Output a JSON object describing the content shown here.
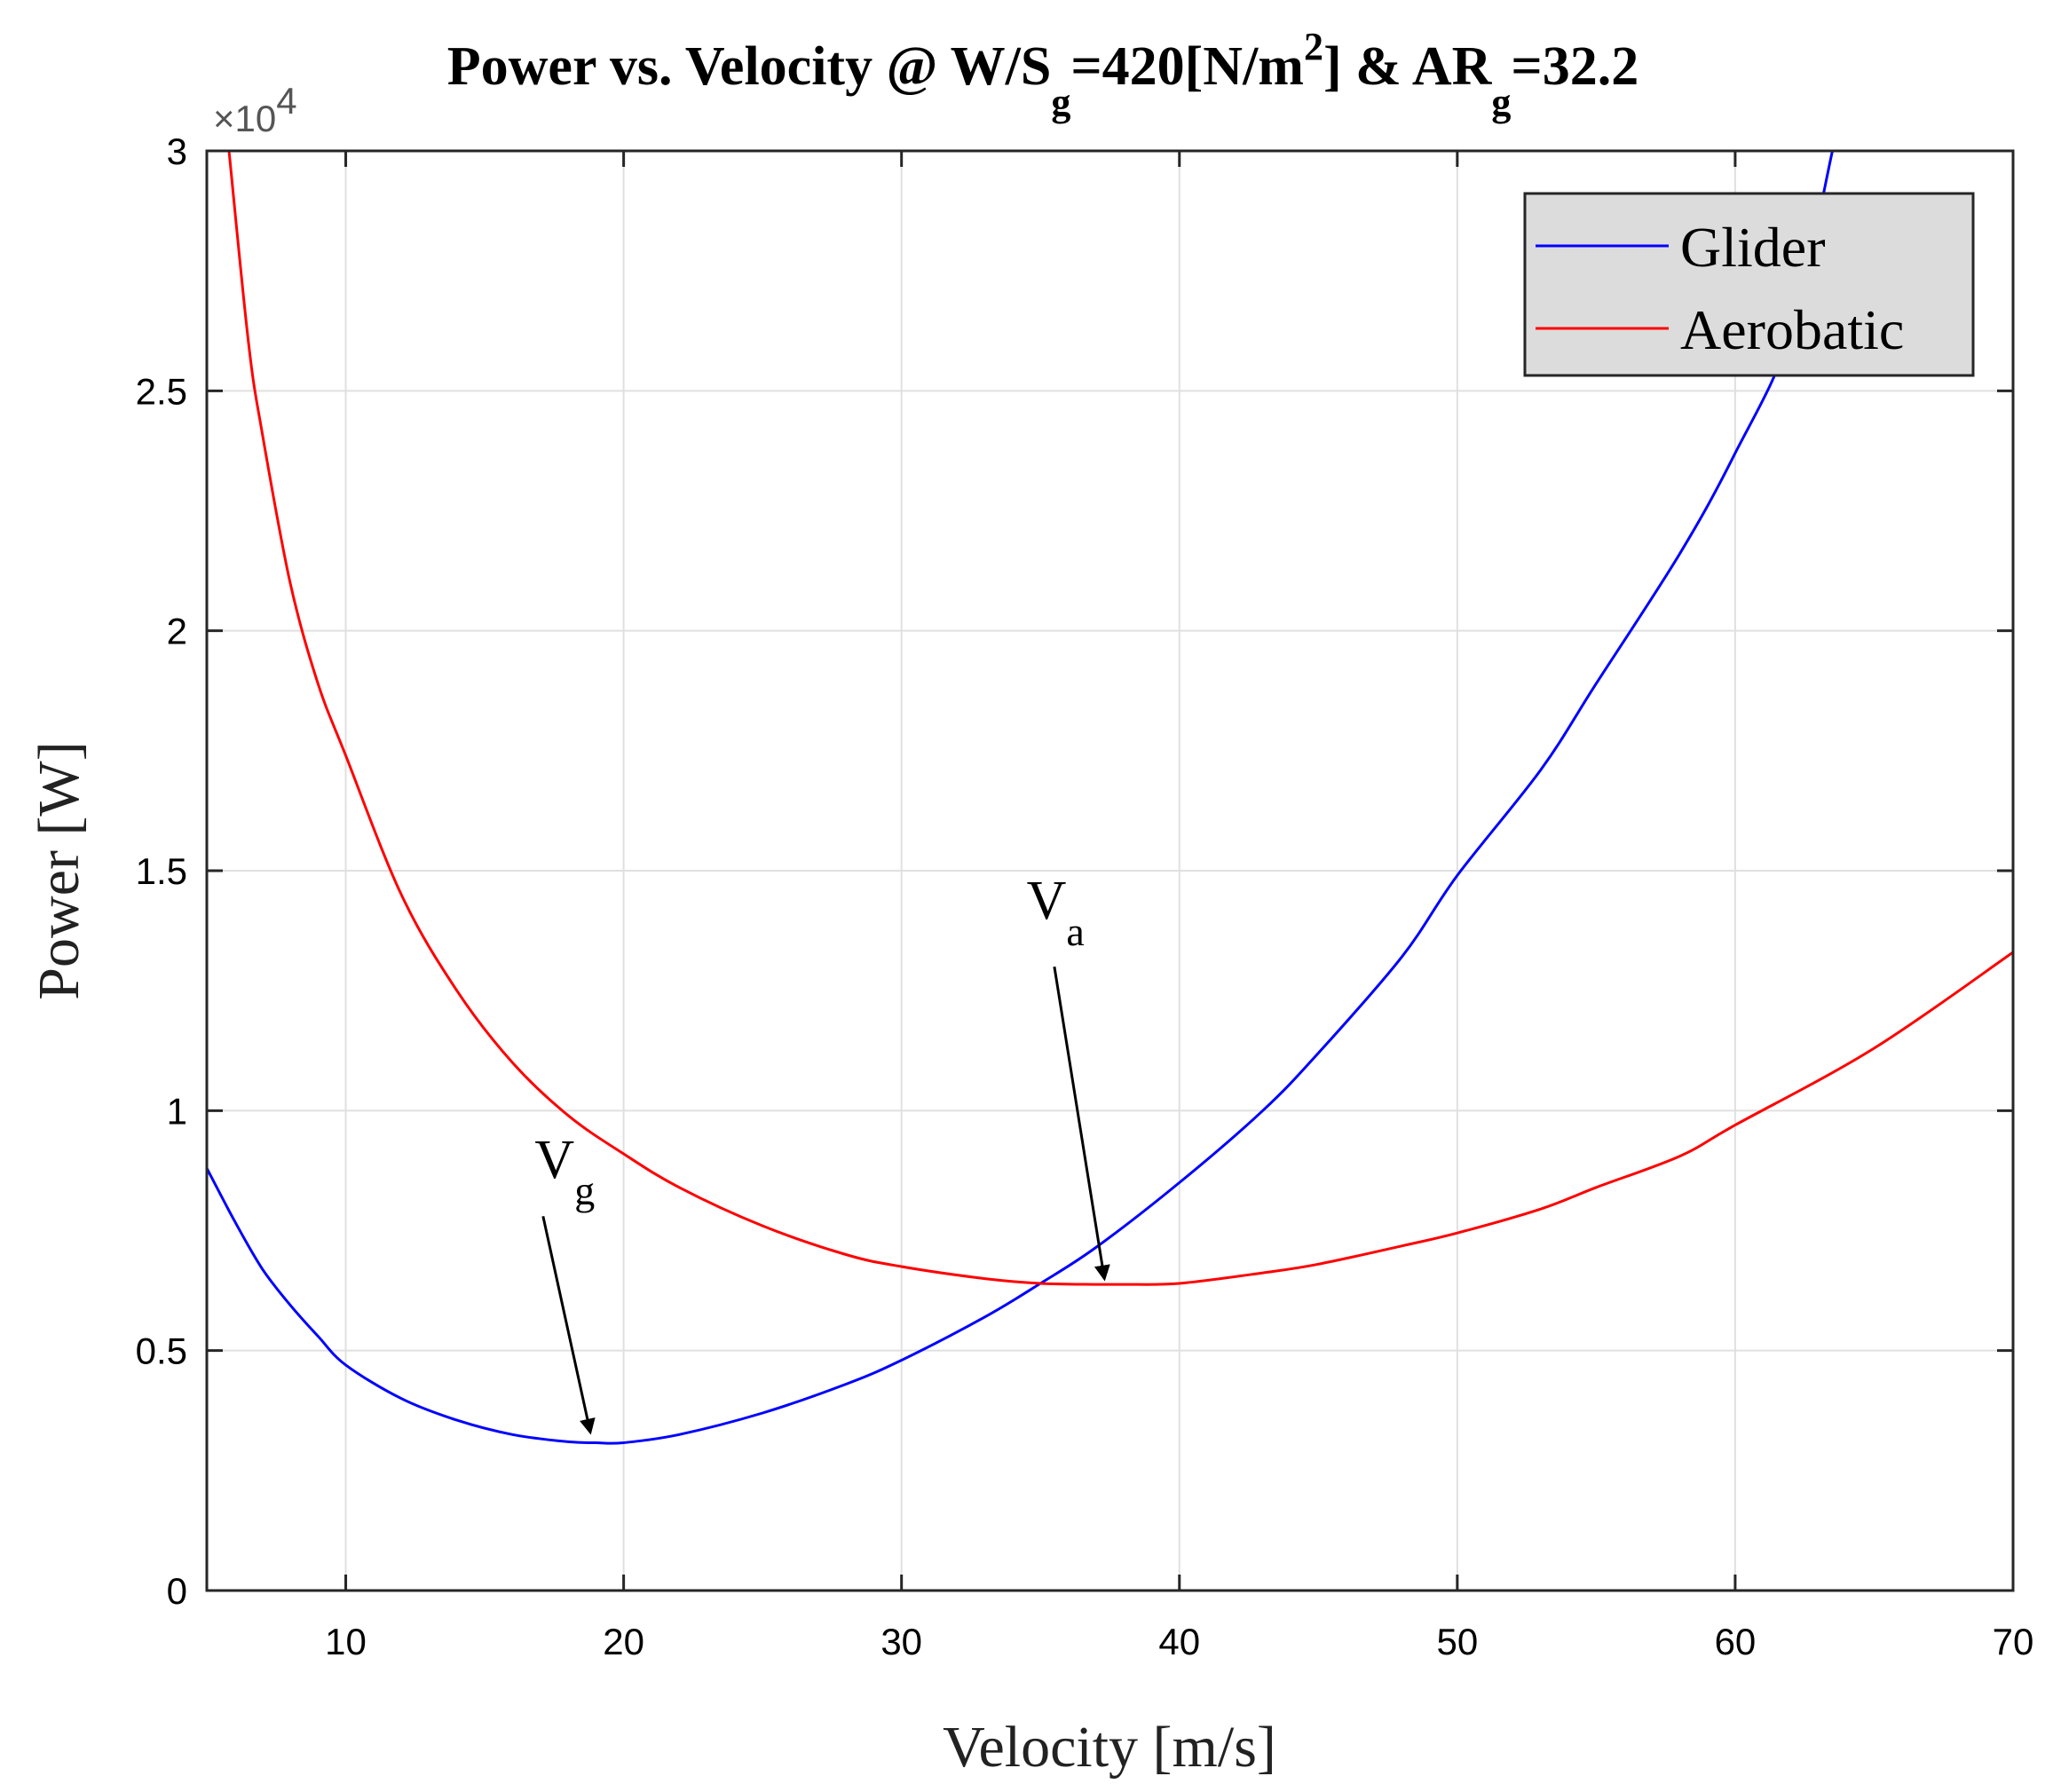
{
  "chart_data": {
    "type": "line",
    "title_main": "Power vs. Velocity @ W/S",
    "title_sub1": "g",
    "title_mid": "=420[N/m",
    "title_sup": "2",
    "title_after": "] & AR",
    "title_sub2": "g",
    "title_end": "=32.2",
    "xlabel": "Velocity [m/s]",
    "ylabel": "Power [W]",
    "xlim": [
      5,
      70
    ],
    "ylim": [
      0,
      30000
    ],
    "y_exponent_base": "×10",
    "y_exponent_power": "4",
    "xticks": [
      10,
      20,
      30,
      40,
      50,
      60,
      70
    ],
    "xtick_labels": [
      "10",
      "20",
      "30",
      "40",
      "50",
      "60",
      "70"
    ],
    "yticks": [
      0,
      5000,
      10000,
      15000,
      20000,
      25000,
      30000
    ],
    "ytick_labels": [
      "0",
      "0.5",
      "1",
      "1.5",
      "2",
      "2.5",
      "3"
    ],
    "grid": true,
    "legend_position": "top-right",
    "series": [
      {
        "name": "Glider",
        "color": "#0000ff",
        "x": [
          5,
          6,
          7,
          8,
          9,
          10,
          12,
          14,
          16,
          18,
          19,
          20,
          22,
          25,
          28,
          30,
          33,
          35,
          37,
          40,
          43,
          45,
          48,
          50,
          53,
          55,
          58,
          60,
          62,
          63.5
        ],
        "y": [
          8800,
          7700,
          6700,
          5950,
          5300,
          4700,
          4000,
          3550,
          3250,
          3100,
          3080,
          3080,
          3250,
          3700,
          4300,
          4800,
          5700,
          6400,
          7150,
          8500,
          10000,
          11200,
          13200,
          14900,
          17100,
          18900,
          21600,
          23700,
          26200,
          30000
        ]
      },
      {
        "name": "Aerobatic",
        "color": "#ff0000",
        "x": [
          5.8,
          6.5,
          7,
          8,
          9,
          10,
          12,
          14,
          16,
          18,
          20,
          22,
          25,
          28,
          30,
          33,
          35,
          37,
          38,
          40,
          43,
          45,
          48,
          50,
          53,
          55,
          58,
          60,
          65,
          70
        ],
        "y": [
          30000,
          26000,
          24100,
          21000,
          18900,
          17400,
          14500,
          12500,
          11000,
          9900,
          9100,
          8400,
          7600,
          7000,
          6750,
          6500,
          6400,
          6380,
          6380,
          6400,
          6620,
          6800,
          7180,
          7450,
          7950,
          8400,
          9050,
          9700,
          11300,
          13300
        ]
      }
    ],
    "annotations": [
      {
        "label": "V",
        "sub": "a",
        "text_x": 34.5,
        "text_y": 14000,
        "arrow_from_x": 35.5,
        "arrow_from_y": 13000,
        "arrow_to_x": 37.3,
        "arrow_to_y": 6500
      },
      {
        "label": "V",
        "sub": "g",
        "text_x": 16.8,
        "text_y": 8600,
        "arrow_from_x": 17.1,
        "arrow_from_y": 7800,
        "arrow_to_x": 18.8,
        "arrow_to_y": 3300
      }
    ]
  }
}
